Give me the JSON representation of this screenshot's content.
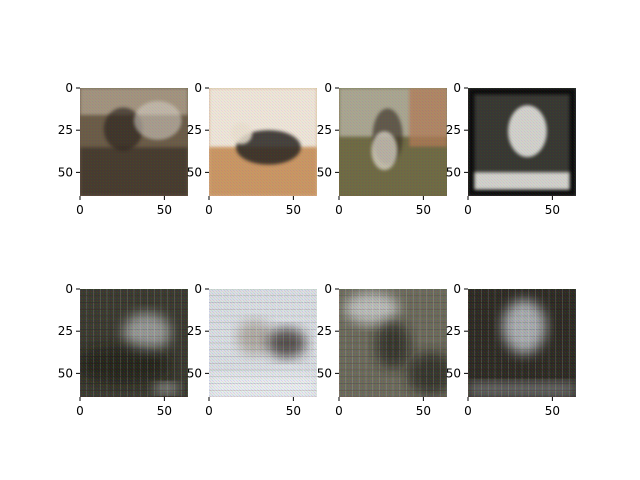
{
  "figure": {
    "layout": "2x4 image grid (matplotlib imshow)",
    "background": "#ffffff"
  },
  "chart_data": [
    {
      "type": "heatmap",
      "panel": "top-1",
      "subject": "man with headset in cockpit",
      "x_ticks": [
        "0",
        "50"
      ],
      "y_ticks": [
        "0",
        "25",
        "50"
      ],
      "xlim": [
        0,
        64
      ],
      "ylim": [
        64,
        0
      ],
      "grid": false,
      "colors": {
        "base": "#6b5c48",
        "light": "#d8d2c8",
        "dark": "#2a241c",
        "accent": "#a89a86"
      }
    },
    {
      "type": "heatmap",
      "panel": "top-2",
      "subject": "dog lying on floor",
      "x_ticks": [
        "0",
        "50"
      ],
      "y_ticks": [
        "0",
        "25",
        "50"
      ],
      "xlim": [
        0,
        64
      ],
      "ylim": [
        64,
        0
      ],
      "grid": false,
      "colors": {
        "base": "#d6b38c",
        "light": "#f2ede6",
        "dark": "#2b2623",
        "accent": "#c48a55"
      }
    },
    {
      "type": "heatmap",
      "panel": "top-3",
      "subject": "child carrying a dog outdoors",
      "x_ticks": [
        "0",
        "50"
      ],
      "y_ticks": [
        "0",
        "25",
        "50"
      ],
      "xlim": [
        0,
        64
      ],
      "ylim": [
        64,
        0
      ],
      "grid": false,
      "colors": {
        "base": "#6f6a45",
        "light": "#d9d6cf",
        "dark": "#3a3026",
        "accent": "#b27b58"
      }
    },
    {
      "type": "heatmap",
      "panel": "top-4",
      "subject": "white wolf in snow",
      "x_ticks": [
        "0",
        "50"
      ],
      "y_ticks": [
        "0",
        "25",
        "50"
      ],
      "xlim": [
        0,
        64
      ],
      "ylim": [
        64,
        0
      ],
      "grid": false,
      "colors": {
        "base": "#3a3a36",
        "light": "#ecebe6",
        "dark": "#0a0a0a",
        "accent": "#6a6a62"
      }
    },
    {
      "type": "heatmap",
      "panel": "bottom-1",
      "subject": "blurry reconstruction",
      "x_ticks": [
        "0",
        "50"
      ],
      "y_ticks": [
        "0",
        "25",
        "50"
      ],
      "xlim": [
        0,
        64
      ],
      "ylim": [
        64,
        0
      ],
      "grid": false,
      "colors": {
        "base": "#3b3a30",
        "light": "#dfe3e6",
        "dark": "#141310",
        "accent": "#6a6850"
      }
    },
    {
      "type": "heatmap",
      "panel": "bottom-2",
      "subject": "blurry reconstruction",
      "x_ticks": [
        "0",
        "50"
      ],
      "y_ticks": [
        "0",
        "25",
        "50"
      ],
      "xlim": [
        0,
        64
      ],
      "ylim": [
        64,
        0
      ],
      "grid": false,
      "colors": {
        "base": "#d9dde2",
        "light": "#f2f4f7",
        "dark": "#2a241f",
        "accent": "#8c8070"
      }
    },
    {
      "type": "heatmap",
      "panel": "bottom-3",
      "subject": "blurry reconstruction",
      "x_ticks": [
        "0",
        "50"
      ],
      "y_ticks": [
        "0",
        "25",
        "50"
      ],
      "xlim": [
        0,
        64
      ],
      "ylim": [
        64,
        0
      ],
      "grid": false,
      "colors": {
        "base": "#6c6a5c",
        "light": "#e4e7ea",
        "dark": "#1e1b16",
        "accent": "#9a9684"
      }
    },
    {
      "type": "heatmap",
      "panel": "bottom-4",
      "subject": "blurry reconstruction",
      "x_ticks": [
        "0",
        "50"
      ],
      "y_ticks": [
        "0",
        "25",
        "50"
      ],
      "xlim": [
        0,
        64
      ],
      "ylim": [
        64,
        0
      ],
      "grid": false,
      "colors": {
        "base": "#2e2b24",
        "light": "#dde3ea",
        "dark": "#100e0b",
        "accent": "#5e5a4c"
      }
    }
  ]
}
